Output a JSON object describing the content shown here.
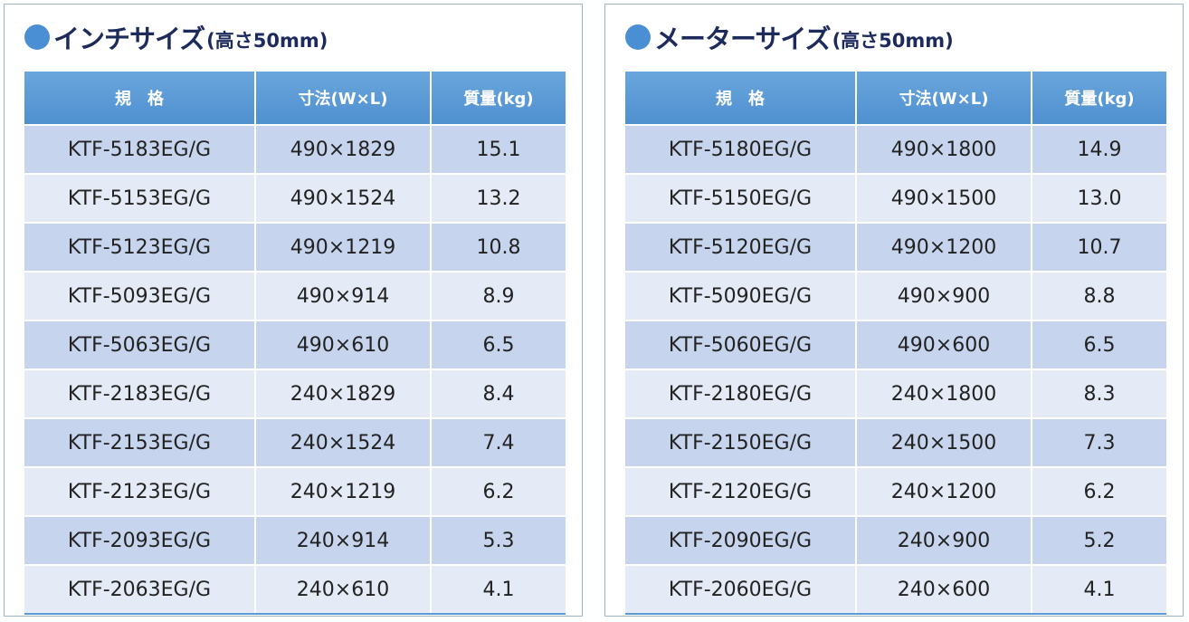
{
  "panels": [
    {
      "title": "インチサイズ",
      "subtitle": "(高さ50mm)",
      "header": [
        "規　格",
        "寸法(W×L)",
        "質量(kg)"
      ],
      "rows": [
        [
          "KTF-5183EG/G",
          "490×1829",
          "15.1"
        ],
        [
          "KTF-5153EG/G",
          "490×1524",
          "13.2"
        ],
        [
          "KTF-5123EG/G",
          "490×1219",
          "10.8"
        ],
        [
          "KTF-5093EG/G",
          "490×914",
          "8.9"
        ],
        [
          "KTF-5063EG/G",
          "490×610",
          "6.5"
        ],
        [
          "KTF-2183EG/G",
          "240×1829",
          "8.4"
        ],
        [
          "KTF-2153EG/G",
          "240×1524",
          "7.4"
        ],
        [
          "KTF-2123EG/G",
          "240×1219",
          "6.2"
        ],
        [
          "KTF-2093EG/G",
          "240×914",
          "5.3"
        ],
        [
          "KTF-2063EG/G",
          "240×610",
          "4.1"
        ]
      ]
    },
    {
      "title": "メーターサイズ",
      "subtitle": "(高さ50mm)",
      "header": [
        "規　格",
        "寸法(W×L)",
        "質量(kg)"
      ],
      "rows": [
        [
          "KTF-5180EG/G",
          "490×1800",
          "14.9"
        ],
        [
          "KTF-5150EG/G",
          "490×1500",
          "13.0"
        ],
        [
          "KTF-5120EG/G",
          "490×1200",
          "10.7"
        ],
        [
          "KTF-5090EG/G",
          "490×900",
          "8.8"
        ],
        [
          "KTF-5060EG/G",
          "490×600",
          "6.5"
        ],
        [
          "KTF-2180EG/G",
          "240×1800",
          "8.3"
        ],
        [
          "KTF-2150EG/G",
          "240×1500",
          "7.3"
        ],
        [
          "KTF-2120EG/G",
          "240×1200",
          "6.2"
        ],
        [
          "KTF-2090EG/G",
          "240×900",
          "5.2"
        ],
        [
          "KTF-2060EG/G",
          "240×600",
          "4.1"
        ]
      ]
    }
  ]
}
